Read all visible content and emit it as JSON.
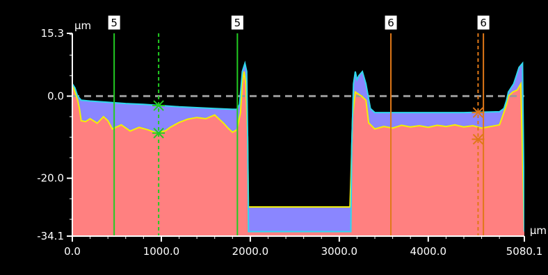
{
  "chart_data": {
    "type": "area",
    "xunit": "µm",
    "yunit": "µm",
    "xlim": [
      0,
      5080.1
    ],
    "ylim": [
      -34.1,
      15.3
    ],
    "xticks": [
      0,
      1000,
      2000,
      3000,
      4000,
      5080.1
    ],
    "xtick_labels": [
      "0.0",
      "1000.0",
      "2000.0",
      "3000.0",
      "4000.0",
      "5080.1"
    ],
    "yticks": [
      15.3,
      0,
      -20,
      -34.1
    ],
    "ytick_labels": [
      "15.3",
      "0.0",
      "-20.0",
      "-34.1"
    ],
    "reference_line": 0,
    "colors": {
      "upper": "#2fd8ee",
      "lower": "#f2f200",
      "fill_between": "#8a86ff",
      "fill_below": "#ff8080",
      "green": "#22cc22",
      "orange": "#e07818",
      "axis": "#ffffff",
      "reference": "#9a9a9a"
    },
    "upper_profile": [
      [
        0,
        3
      ],
      [
        30,
        2
      ],
      [
        60,
        0
      ],
      [
        100,
        -1
      ],
      [
        200,
        -1.2
      ],
      [
        400,
        -1.5
      ],
      [
        600,
        -1.8
      ],
      [
        800,
        -2
      ],
      [
        1000,
        -2.3
      ],
      [
        1200,
        -2.6
      ],
      [
        1400,
        -2.8
      ],
      [
        1600,
        -3
      ],
      [
        1800,
        -3.2
      ],
      [
        1850,
        -3.2
      ],
      [
        1880,
        -2
      ],
      [
        1910,
        6
      ],
      [
        1940,
        8
      ],
      [
        1960,
        6
      ],
      [
        1970,
        -10
      ],
      [
        1980,
        -33
      ],
      [
        3130,
        -33
      ],
      [
        3140,
        -12
      ],
      [
        3160,
        3
      ],
      [
        3180,
        6
      ],
      [
        3200,
        4
      ],
      [
        3220,
        5
      ],
      [
        3260,
        6
      ],
      [
        3300,
        3
      ],
      [
        3350,
        -3
      ],
      [
        3400,
        -4
      ],
      [
        3600,
        -4
      ],
      [
        4000,
        -4
      ],
      [
        4400,
        -4
      ],
      [
        4800,
        -3.8
      ],
      [
        4850,
        -3
      ],
      [
        4880,
        -1
      ],
      [
        4900,
        1
      ],
      [
        4930,
        2
      ],
      [
        4960,
        3
      ],
      [
        4990,
        5
      ],
      [
        5020,
        7
      ],
      [
        5060,
        8
      ],
      [
        5080.1,
        -33
      ]
    ],
    "lower_profile": [
      [
        0,
        3
      ],
      [
        30,
        1
      ],
      [
        60,
        -1
      ],
      [
        80,
        -3
      ],
      [
        100,
        -6
      ],
      [
        150,
        -6.2
      ],
      [
        200,
        -5.5
      ],
      [
        280,
        -6.6
      ],
      [
        350,
        -5
      ],
      [
        400,
        -6
      ],
      [
        450,
        -8
      ],
      [
        550,
        -7
      ],
      [
        650,
        -8.5
      ],
      [
        750,
        -7.6
      ],
      [
        850,
        -8.2
      ],
      [
        950,
        -9
      ],
      [
        1050,
        -8.4
      ],
      [
        1100,
        -7.6
      ],
      [
        1200,
        -6.4
      ],
      [
        1300,
        -5.6
      ],
      [
        1400,
        -5.2
      ],
      [
        1500,
        -5.5
      ],
      [
        1600,
        -4.6
      ],
      [
        1700,
        -6.6
      ],
      [
        1750,
        -7.8
      ],
      [
        1800,
        -8.8
      ],
      [
        1850,
        -8.2
      ],
      [
        1890,
        -4
      ],
      [
        1910,
        3
      ],
      [
        1930,
        6
      ],
      [
        1950,
        3
      ],
      [
        1970,
        -10
      ],
      [
        1980,
        -27
      ],
      [
        3120,
        -27
      ],
      [
        3130,
        -20
      ],
      [
        3150,
        -5
      ],
      [
        3180,
        1
      ],
      [
        3250,
        0
      ],
      [
        3300,
        -1
      ],
      [
        3330,
        -6.5
      ],
      [
        3400,
        -8
      ],
      [
        3500,
        -7.4
      ],
      [
        3600,
        -7.8
      ],
      [
        3700,
        -7.1
      ],
      [
        3800,
        -7.5
      ],
      [
        3900,
        -7.2
      ],
      [
        4000,
        -7.6
      ],
      [
        4100,
        -7.1
      ],
      [
        4200,
        -7.4
      ],
      [
        4300,
        -7
      ],
      [
        4400,
        -7.5
      ],
      [
        4500,
        -7.2
      ],
      [
        4600,
        -7.8
      ],
      [
        4700,
        -7.4
      ],
      [
        4800,
        -7
      ],
      [
        4850,
        -4
      ],
      [
        4880,
        -2
      ],
      [
        4900,
        0
      ],
      [
        4950,
        1
      ],
      [
        5000,
        1.5
      ],
      [
        5040,
        3
      ],
      [
        5080.1,
        -33
      ]
    ],
    "cursors": [
      {
        "label": "5",
        "x": 470,
        "color": "green",
        "style": "solid",
        "show_label": true
      },
      {
        "label": "",
        "x": 970,
        "color": "green",
        "style": "dashed",
        "show_label": false,
        "cross_y": [
          -2.3,
          -9
        ]
      },
      {
        "label": "5",
        "x": 1855,
        "color": "green",
        "style": "solid",
        "show_label": true
      },
      {
        "label": "6",
        "x": 3580,
        "color": "orange",
        "style": "solid",
        "show_label": true
      },
      {
        "label": "",
        "x": 4560,
        "color": "orange",
        "style": "dashed",
        "show_label": false,
        "cross_y": [
          -4,
          -10.5
        ]
      },
      {
        "label": "6",
        "x": 4620,
        "color": "orange",
        "style": "solid",
        "show_label": true
      }
    ]
  }
}
